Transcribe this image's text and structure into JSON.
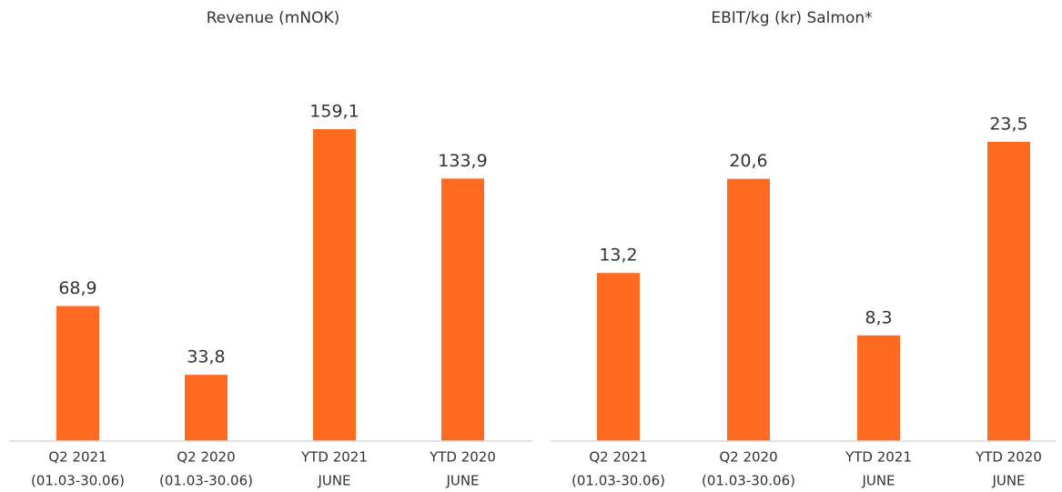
{
  "chart_data": [
    {
      "type": "bar",
      "title": "Revenue (mNOK)",
      "categories": [
        [
          "Q2 2021",
          "(01.03-30.06)"
        ],
        [
          "Q2 2020",
          "(01.03-30.06)"
        ],
        [
          "YTD 2021",
          "JUNE"
        ],
        [
          "YTD 2020",
          "JUNE"
        ]
      ],
      "values": [
        68.9,
        33.8,
        159.1,
        133.9
      ],
      "value_labels": [
        "68,9",
        "33,8",
        "159,1",
        "133,9"
      ],
      "color": "#ff6a21",
      "ylim": [
        0,
        180
      ]
    },
    {
      "type": "bar",
      "title": "EBIT/kg (kr) Salmon*",
      "categories": [
        [
          "Q2 2021",
          "(01.03-30.06)"
        ],
        [
          "Q2 2020",
          "(01.03-30.06)"
        ],
        [
          "YTD 2021",
          "JUNE"
        ],
        [
          "YTD 2020",
          "JUNE"
        ]
      ],
      "values": [
        13.2,
        20.6,
        8.3,
        23.5
      ],
      "value_labels": [
        "13,2",
        "20,6",
        "8,3",
        "23,5"
      ],
      "color": "#ff6a21",
      "ylim": [
        0,
        27
      ]
    }
  ]
}
